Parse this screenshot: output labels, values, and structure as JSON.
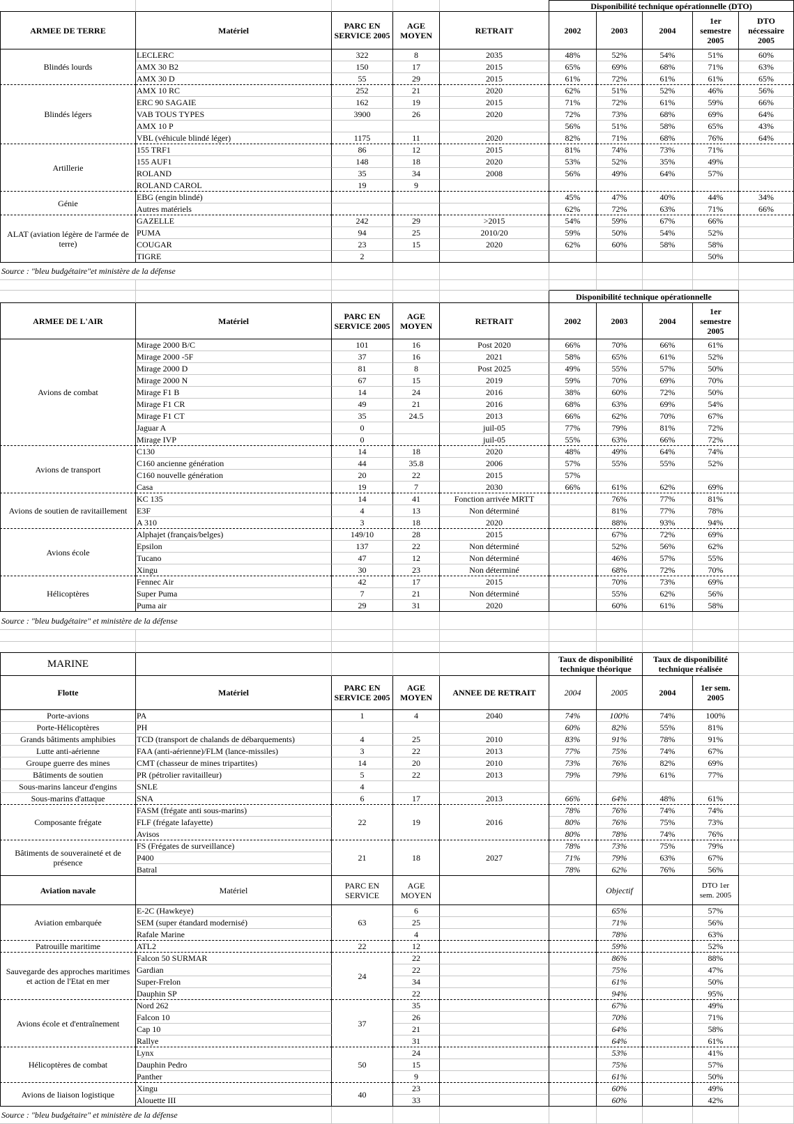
{
  "army": {
    "super_header": "Disponibilité technique opérationnelle (DTO)",
    "headers": [
      "ARMEE DE TERRE",
      "Matériel",
      "PARC EN SERVICE 2005",
      "AGE MOYEN",
      "RETRAIT",
      "2002",
      "2003",
      "2004",
      "1er semestre 2005",
      "DTO nécessaire 2005"
    ],
    "groups": [
      {
        "label": "Blindés lourds",
        "rows": [
          [
            "LECLERC",
            "322",
            "8",
            "2035",
            "48%",
            "52%",
            "54%",
            "51%",
            "60%"
          ],
          [
            "AMX 30 B2",
            "150",
            "17",
            "2015",
            "65%",
            "69%",
            "68%",
            "71%",
            "63%"
          ],
          [
            "AMX 30 D",
            "55",
            "29",
            "2015",
            "61%",
            "72%",
            "61%",
            "61%",
            "65%"
          ]
        ]
      },
      {
        "label": "Blindés légers",
        "rows": [
          [
            "AMX 10 RC",
            "252",
            "21",
            "2020",
            "62%",
            "51%",
            "52%",
            "46%",
            "56%"
          ],
          [
            "ERC 90 SAGAIE",
            "162",
            "19",
            "2015",
            "71%",
            "72%",
            "61%",
            "59%",
            "66%"
          ],
          [
            "VAB TOUS TYPES",
            "3900",
            "26",
            "2020",
            "72%",
            "73%",
            "68%",
            "69%",
            "64%"
          ],
          [
            "AMX 10 P",
            "",
            "",
            "",
            "56%",
            "51%",
            "58%",
            "65%",
            "43%"
          ],
          [
            "VBL (véhicule blindé léger)",
            "1175",
            "11",
            "2020",
            "82%",
            "71%",
            "68%",
            "76%",
            "64%"
          ]
        ]
      },
      {
        "label": "Artillerie",
        "rows": [
          [
            "155 TRF1",
            "86",
            "12",
            "2015",
            "81%",
            "74%",
            "73%",
            "71%",
            ""
          ],
          [
            "155 AUF1",
            "148",
            "18",
            "2020",
            "53%",
            "52%",
            "35%",
            "49%",
            ""
          ],
          [
            "ROLAND",
            "35",
            "34",
            "2008",
            "56%",
            "49%",
            "64%",
            "57%",
            ""
          ],
          [
            "ROLAND CAROL",
            "19",
            "9",
            "",
            "",
            "",
            "",
            "",
            ""
          ]
        ]
      },
      {
        "label": "Génie",
        "rows": [
          [
            "EBG (engin blindé)",
            "",
            "",
            "",
            "45%",
            "47%",
            "40%",
            "44%",
            "34%"
          ],
          [
            "Autres matériels",
            "",
            "",
            "",
            "62%",
            "72%",
            "63%",
            "71%",
            "66%"
          ]
        ]
      },
      {
        "label": "ALAT (aviation légère de l'armée de terre)",
        "rows": [
          [
            "GAZELLE",
            "242",
            "29",
            ">2015",
            "54%",
            "59%",
            "67%",
            "66%",
            ""
          ],
          [
            "PUMA",
            "94",
            "25",
            "2010/20",
            "59%",
            "50%",
            "54%",
            "52%",
            ""
          ],
          [
            "COUGAR",
            "23",
            "15",
            "2020",
            "62%",
            "60%",
            "58%",
            "58%",
            ""
          ],
          [
            "TIGRE",
            "2",
            "",
            "",
            "",
            "",
            "",
            "50%",
            ""
          ]
        ]
      }
    ],
    "source": "Source : \"bleu budgétaire\"et ministère de la défense"
  },
  "air": {
    "super_header": "Disponibilité technique opérationnelle",
    "headers": [
      "ARMEE DE L'AIR",
      "Matériel",
      "PARC EN SERVICE 2005",
      "AGE MOYEN",
      "RETRAIT",
      "2002",
      "2003",
      "2004",
      "1er semestre 2005"
    ],
    "groups": [
      {
        "label": "Avions de combat",
        "rows": [
          [
            "Mirage 2000 B/C",
            "101",
            "16",
            "Post 2020",
            "66%",
            "70%",
            "66%",
            "61%"
          ],
          [
            "Mirage 2000 -5F",
            "37",
            "16",
            "2021",
            "58%",
            "65%",
            "61%",
            "52%"
          ],
          [
            "Mirage 2000 D",
            "81",
            "8",
            "Post 2025",
            "49%",
            "55%",
            "57%",
            "50%"
          ],
          [
            "Mirage 2000 N",
            "67",
            "15",
            "2019",
            "59%",
            "70%",
            "69%",
            "70%"
          ],
          [
            "Mirage F1 B",
            "14",
            "24",
            "2016",
            "38%",
            "60%",
            "72%",
            "50%"
          ],
          [
            "Mirage F1 CR",
            "49",
            "21",
            "2016",
            "68%",
            "63%",
            "69%",
            "54%"
          ],
          [
            "Mirage F1 CT",
            "35",
            "24.5",
            "2013",
            "66%",
            "62%",
            "70%",
            "67%"
          ],
          [
            "Jaguar A",
            "0",
            "",
            "juil-05",
            "77%",
            "79%",
            "81%",
            "72%"
          ],
          [
            "Mirage IVP",
            "0",
            "",
            "juil-05",
            "55%",
            "63%",
            "66%",
            "72%"
          ]
        ]
      },
      {
        "label": "Avions de transport",
        "rows": [
          [
            "C130",
            "14",
            "18",
            "2020",
            "48%",
            "49%",
            "64%",
            "74%"
          ],
          [
            "C160 ancienne génération",
            "44",
            "35.8",
            "2006",
            "57%",
            "55%",
            "55%",
            "52%"
          ],
          [
            "C160 nouvelle génération",
            "20",
            "22",
            "2015",
            "57%",
            "",
            "",
            ""
          ],
          [
            "Casa",
            "19",
            "7",
            "2030",
            "66%",
            "61%",
            "62%",
            "69%"
          ]
        ]
      },
      {
        "label": "Avions de soutien de ravitaillement",
        "rows": [
          [
            "KC 135",
            "14",
            "41",
            "Fonction arrivée MRTT",
            "",
            "76%",
            "77%",
            "81%"
          ],
          [
            "E3F",
            "4",
            "13",
            "Non déterminé",
            "",
            "81%",
            "77%",
            "78%"
          ],
          [
            "A 310",
            "3",
            "18",
            "2020",
            "",
            "88%",
            "93%",
            "94%"
          ]
        ]
      },
      {
        "label": "Avions école",
        "rows": [
          [
            "Alphajet (français/belges)",
            "149/10",
            "28",
            "2015",
            "",
            "67%",
            "72%",
            "69%"
          ],
          [
            "Epsilon",
            "137",
            "22",
            "Non déterminé",
            "",
            "52%",
            "56%",
            "62%"
          ],
          [
            "Tucano",
            "47",
            "12",
            "Non déterminé",
            "",
            "46%",
            "57%",
            "55%"
          ],
          [
            "Xingu",
            "30",
            "23",
            "Non déterminé",
            "",
            "68%",
            "72%",
            "70%"
          ]
        ]
      },
      {
        "label": "Hélicoptères",
        "rows": [
          [
            "Fennec Air",
            "42",
            "17",
            "2015",
            "",
            "70%",
            "73%",
            "69%"
          ],
          [
            "Super Puma",
            "7",
            "21",
            "Non déterminé",
            "",
            "55%",
            "62%",
            "56%"
          ],
          [
            "Puma air",
            "29",
            "31",
            "2020",
            "",
            "60%",
            "61%",
            "58%"
          ]
        ]
      }
    ],
    "source": "Source : \"bleu budgétaire\" et ministère de la défense"
  },
  "marine": {
    "title": "MARINE",
    "super_theoretical": "Taux de disponibilité technique théorique",
    "super_realised": "Taux de disponibilité technique réalisée",
    "headers": [
      "Flotte",
      "Matériel",
      "PARC EN SERVICE 2005",
      "AGE MOYEN",
      "ANNEE DE RETRAIT",
      "2004",
      "2005",
      "2004",
      "1er sem. 2005"
    ],
    "single_rows": [
      [
        "Porte-avions",
        "PA",
        "1",
        "4",
        "2040",
        "74%",
        "100%",
        "74%",
        "100%"
      ],
      [
        "Porte-Hélicoptères",
        "PH",
        "",
        "",
        "",
        "60%",
        "82%",
        "55%",
        "81%"
      ],
      [
        "Grands bâtiments amphibies",
        "TCD (transport de chalands de débarquements)",
        "4",
        "25",
        "2010",
        "83%",
        "91%",
        "78%",
        "91%"
      ],
      [
        "Lutte anti-aérienne",
        "FAA (anti-aérienne)/FLM (lance-missiles)",
        "3",
        "22",
        "2013",
        "77%",
        "75%",
        "74%",
        "67%"
      ],
      [
        "Groupe guerre des mines",
        "CMT (chasseur de mines tripartites)",
        "14",
        "20",
        "2010",
        "73%",
        "76%",
        "82%",
        "69%"
      ],
      [
        "Bâtiments de soutien",
        "PR (pétrolier ravitailleur)",
        "5",
        "22",
        "2013",
        "79%",
        "79%",
        "61%",
        "77%"
      ],
      [
        "Sous-marins lanceur d'engins",
        "SNLE",
        "4",
        "",
        "",
        "",
        "",
        "",
        ""
      ],
      [
        "Sous-marins d'attaque",
        "SNA",
        "6",
        "17",
        "2013",
        "66%",
        "64%",
        "48%",
        "61%"
      ]
    ],
    "merged_groups": [
      {
        "label": "Composante frégate",
        "parc": "22",
        "age": "19",
        "retrait": "2016",
        "rows": [
          [
            "FASM (frégate anti sous-marins)",
            "78%",
            "76%",
            "74%",
            "74%"
          ],
          [
            "FLF (frégate lafayette)",
            "80%",
            "76%",
            "75%",
            "73%"
          ],
          [
            "Avisos",
            "80%",
            "78%",
            "74%",
            "76%"
          ]
        ]
      },
      {
        "label": "Bâtiments de souveraineté et de présence",
        "parc": "21",
        "age": "18",
        "retrait": "2027",
        "rows": [
          [
            "FS (Frégates de surveillance)",
            "78%",
            "73%",
            "75%",
            "79%"
          ],
          [
            "P400",
            "71%",
            "79%",
            "63%",
            "67%"
          ],
          [
            "Batral",
            "78%",
            "62%",
            "76%",
            "56%"
          ]
        ]
      }
    ],
    "aviation": {
      "headers": [
        "Aviation navale",
        "Matériel",
        "PARC EN SERVICE",
        "AGE MOYEN",
        "",
        "",
        "Objectif",
        "",
        "DTO 1er sem. 2005"
      ],
      "groups": [
        {
          "label": "Aviation embarquée",
          "parc": "63",
          "rows": [
            [
              "E-2C (Hawkeye)",
              "6",
              "65%",
              "57%"
            ],
            [
              "SEM (super étandard modernisé)",
              "25",
              "71%",
              "56%"
            ],
            [
              "Rafale Marine",
              "4",
              "78%",
              "63%"
            ]
          ]
        },
        {
          "label": "Patrouille maritime",
          "parc": "22",
          "rows": [
            [
              "ATL2",
              "12",
              "59%",
              "52%"
            ]
          ]
        },
        {
          "label": "Sauvegarde des approches maritimes et action de l'Etat en mer",
          "parc": "24",
          "rows": [
            [
              "Falcon 50 SURMAR",
              "22",
              "86%",
              "88%"
            ],
            [
              "Gardian",
              "22",
              "75%",
              "47%"
            ],
            [
              "Super-Frelon",
              "34",
              "61%",
              "50%"
            ],
            [
              "Dauphin SP",
              "22",
              "94%",
              "95%"
            ]
          ]
        },
        {
          "label": "Avions école et d'entraînement",
          "parc": "37",
          "rows": [
            [
              "Nord 262",
              "35",
              "67%",
              "49%"
            ],
            [
              "Falcon 10",
              "26",
              "70%",
              "71%"
            ],
            [
              "Cap 10",
              "21",
              "64%",
              "58%"
            ],
            [
              "Rallye",
              "31",
              "64%",
              "61%"
            ]
          ]
        },
        {
          "label": "Hélicoptères de combat",
          "parc": "50",
          "rows": [
            [
              "Lynx",
              "24",
              "53%",
              "41%"
            ],
            [
              "Dauphin Pedro",
              "15",
              "75%",
              "57%"
            ],
            [
              "Panther",
              "9",
              "61%",
              "50%"
            ]
          ]
        },
        {
          "label": "Avions de liaison logistique",
          "parc": "40",
          "rows": [
            [
              "Xingu",
              "23",
              "60%",
              "49%"
            ],
            [
              "Alouette III",
              "33",
              "60%",
              "42%"
            ]
          ]
        }
      ]
    },
    "source": "Source : \"bleu budgétaire\" et ministère de la défense"
  },
  "colors": {
    "gridline": "#c6c6c6",
    "border": "#000000"
  }
}
